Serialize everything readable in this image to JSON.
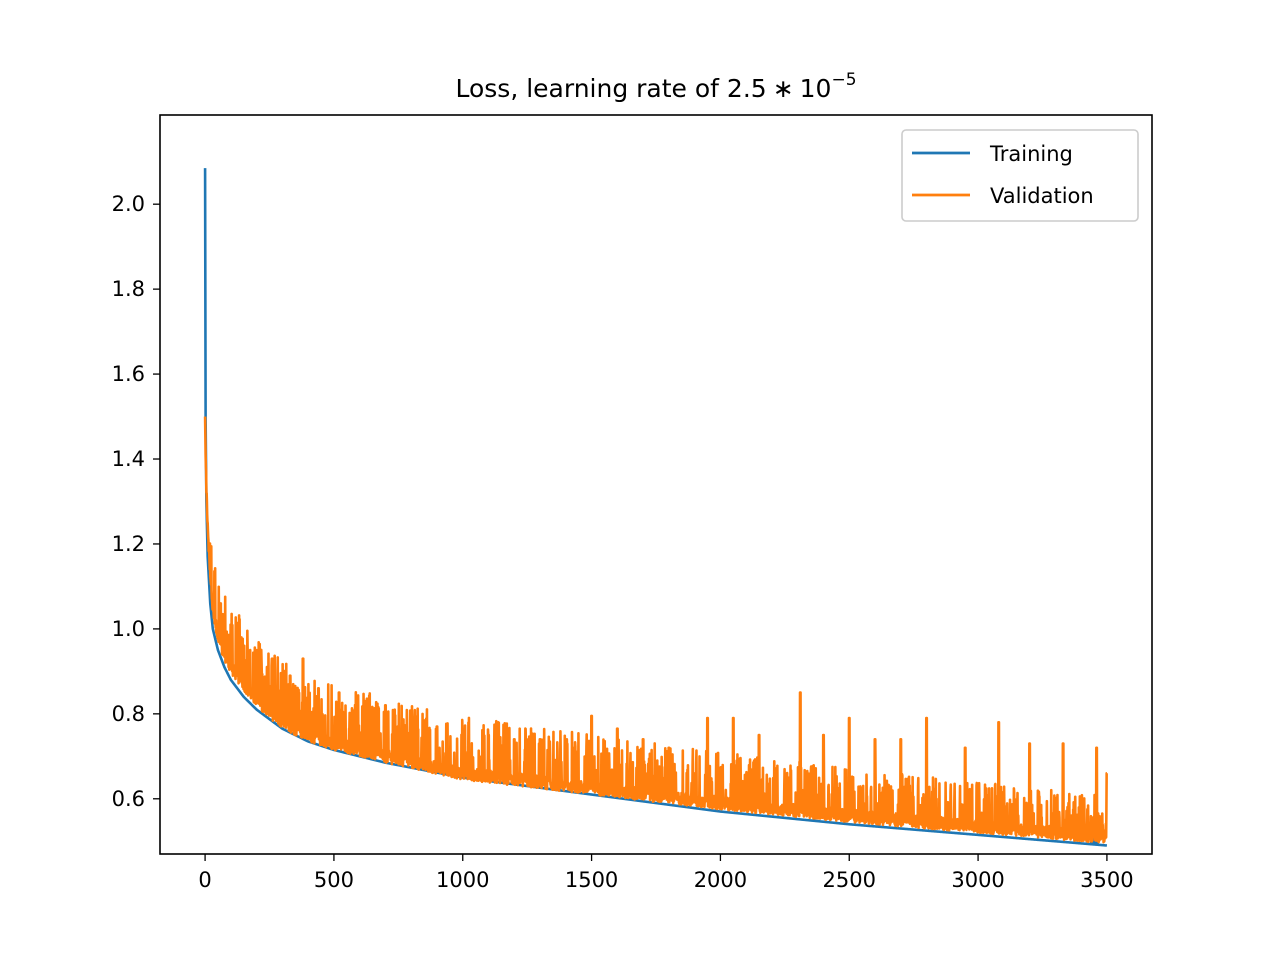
{
  "chart_data": {
    "type": "line",
    "title": "Loss, learning rate of 2.5",
    "title_math": {
      "times": "∗",
      "base": "10",
      "exponent": "−5"
    },
    "xlabel": "",
    "ylabel": "",
    "xlim": [
      -175,
      3675
    ],
    "ylim": [
      0.47,
      2.21
    ],
    "xticks": [
      0,
      500,
      1000,
      1500,
      2000,
      2500,
      3000,
      3500
    ],
    "yticks": [
      0.6,
      0.8,
      1.0,
      1.2,
      1.4,
      1.6,
      1.8,
      2.0
    ],
    "ytick_labels": [
      "0.6",
      "0.8",
      "1.0",
      "1.2",
      "1.4",
      "1.6",
      "1.8",
      "2.0"
    ],
    "grid": false,
    "legend_position": "top-right",
    "series": [
      {
        "name": "Training",
        "color": "#1f77b4",
        "x": [
          0,
          2,
          5,
          10,
          20,
          30,
          50,
          75,
          100,
          150,
          200,
          300,
          400,
          500,
          700,
          1000,
          1500,
          2000,
          2500,
          3000,
          3500
        ],
        "values": [
          2.085,
          1.5,
          1.3,
          1.17,
          1.06,
          1.0,
          0.95,
          0.91,
          0.88,
          0.84,
          0.81,
          0.765,
          0.735,
          0.715,
          0.685,
          0.65,
          0.61,
          0.57,
          0.54,
          0.515,
          0.49
        ]
      },
      {
        "name": "Validation",
        "color": "#ff7f0e",
        "x": [
          0,
          2,
          5,
          10,
          20,
          30,
          50,
          75,
          100,
          150,
          200,
          300,
          400,
          500,
          700,
          1000,
          1500,
          2000,
          2500,
          3000,
          3500
        ],
        "values": [
          1.5,
          1.41,
          1.33,
          1.25,
          1.12,
          1.05,
          0.98,
          0.94,
          0.91,
          0.87,
          0.83,
          0.78,
          0.75,
          0.73,
          0.7,
          0.66,
          0.625,
          0.59,
          0.56,
          0.535,
          0.51
        ],
        "spikes": [
          [
            60,
            1.06
          ],
          [
            100,
            1.01
          ],
          [
            140,
            0.98
          ],
          [
            200,
            0.95
          ],
          [
            260,
            0.93
          ],
          [
            330,
            0.89
          ],
          [
            380,
            0.93
          ],
          [
            440,
            0.86
          ],
          [
            520,
            0.85
          ],
          [
            620,
            0.83
          ],
          [
            700,
            0.82
          ],
          [
            800,
            0.79
          ],
          [
            900,
            0.77
          ],
          [
            1000,
            0.76
          ],
          [
            1100,
            0.75
          ],
          [
            1200,
            0.74
          ],
          [
            1300,
            0.74
          ],
          [
            1400,
            0.73
          ],
          [
            1500,
            0.795
          ],
          [
            1600,
            0.765
          ],
          [
            1700,
            0.74
          ],
          [
            1800,
            0.72
          ],
          [
            1950,
            0.79
          ],
          [
            2050,
            0.79
          ],
          [
            2150,
            0.75
          ],
          [
            2310,
            0.85
          ],
          [
            2400,
            0.75
          ],
          [
            2500,
            0.79
          ],
          [
            2600,
            0.74
          ],
          [
            2700,
            0.74
          ],
          [
            2800,
            0.79
          ],
          [
            2950,
            0.72
          ],
          [
            3080,
            0.78
          ],
          [
            3200,
            0.73
          ],
          [
            3330,
            0.73
          ],
          [
            3460,
            0.72
          ],
          [
            3500,
            0.66
          ]
        ]
      }
    ]
  }
}
